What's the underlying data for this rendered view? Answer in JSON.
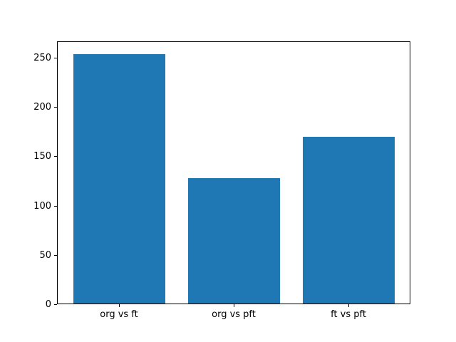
{
  "chart_data": {
    "type": "bar",
    "categories": [
      "org vs ft",
      "org vs pft",
      "ft vs pft"
    ],
    "values": [
      254,
      128,
      170
    ],
    "title": "",
    "xlabel": "",
    "ylabel": "",
    "ylim": [
      0,
      266.7
    ],
    "yticks": [
      0,
      50,
      100,
      150,
      200,
      250
    ],
    "xlim": [
      -0.54,
      2.54
    ],
    "bar_width": 0.8,
    "bar_color": "#1f77b4",
    "background_color": "#ffffff",
    "spine_color": "#000000",
    "grid": false,
    "legend": null
  }
}
